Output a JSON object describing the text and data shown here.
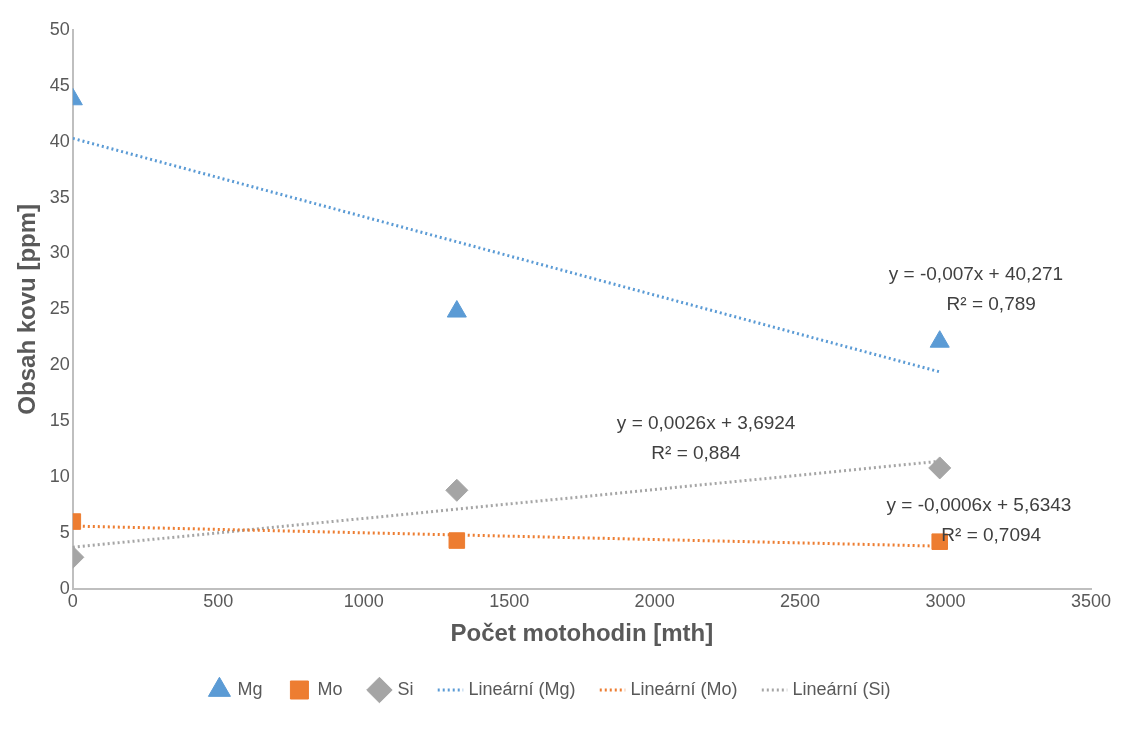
{
  "chart_data": {
    "type": "scatter",
    "xlabel": "Počet motohodin [mth]",
    "ylabel": "Obsah kovu [ppm]",
    "xlim": [
      0,
      3500
    ],
    "xticks": [
      0,
      500,
      1000,
      1500,
      2000,
      2500,
      3000,
      3500
    ],
    "ylim": [
      0,
      50
    ],
    "yticks": [
      0,
      5,
      10,
      15,
      20,
      25,
      30,
      35,
      40,
      45,
      50
    ],
    "grid": false,
    "legend": "bottom",
    "series": [
      {
        "name": "Mg",
        "color": "#5b9bd5",
        "marker": "triangle",
        "x": [
          0,
          1320,
          2980
        ],
        "values": [
          43.8,
          24.8,
          22.1
        ]
      },
      {
        "name": "Mo",
        "color": "#ed7d31",
        "marker": "square",
        "x": [
          0,
          1320,
          2980
        ],
        "values": [
          6.0,
          4.3,
          4.2
        ]
      },
      {
        "name": "Si",
        "color": "#a5a5a5",
        "marker": "diamond",
        "x": [
          0,
          1320,
          2980
        ],
        "values": [
          2.8,
          8.8,
          10.8
        ]
      },
      {
        "name": "Lineární (Mg)",
        "color": "#5b9bd5",
        "type": "line",
        "marker": "none",
        "line_style": "dotted",
        "x": [
          0,
          2980
        ],
        "values": [
          40.3,
          19.4
        ]
      },
      {
        "name": "Lineární (Mo)",
        "color": "#ed7d31",
        "type": "line",
        "marker": "none",
        "line_style": "dotted",
        "x": [
          0,
          2980
        ],
        "values": [
          5.6,
          3.8
        ]
      },
      {
        "name": "Lineární (Si)",
        "color": "#a5a5a5",
        "type": "line",
        "marker": "none",
        "line_style": "dotted",
        "x": [
          0,
          2980
        ],
        "values": [
          3.7,
          11.4
        ]
      }
    ],
    "annotations": [
      "y = -0,007x + 40,271",
      "R² = 0,789",
      "y = 0,0026x + 3,6924",
      "R² = 0,884",
      "y = -0,0006x + 5,6343",
      "R² = 0,7094"
    ]
  }
}
